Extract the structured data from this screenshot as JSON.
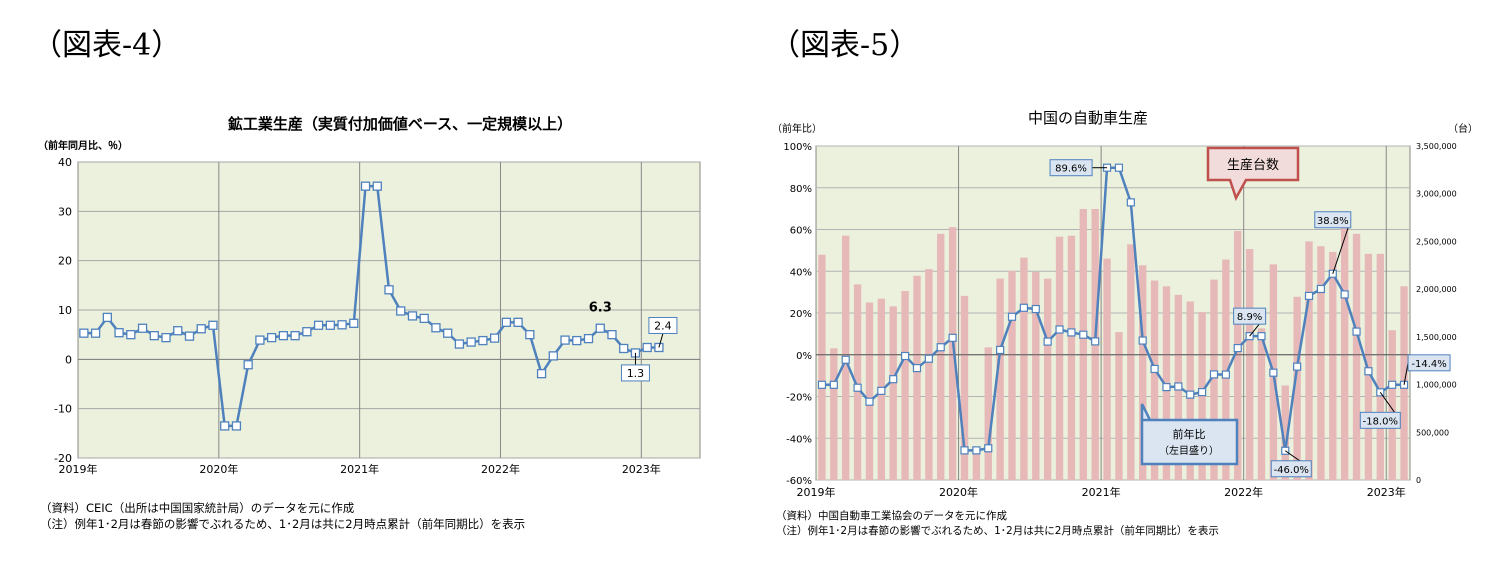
{
  "figure4": {
    "heading": "（図表-4）",
    "notes": [
      "（資料）CEIC（出所は中国国家統計局）のデータを元に作成",
      "（注）例年1･2月は春節の影響でぶれるため、1･2月は共に2月時点累計（前年同期比）を表示"
    ]
  },
  "figure5": {
    "heading": "（図表-5）",
    "notes": [
      "（資料）中国自動車工業協会のデータを元に作成",
      "（注）例年1･2月は春節の影響でぶれるため、1･2月は共に2月時点累計（前年同期比）を表示"
    ]
  },
  "colors": {
    "plot_bg": "#ebf1dd",
    "line": "#4f81bd",
    "bar": "#e6b9b8",
    "marker_fill": "#ffffff",
    "callout_blue_bg": "#dbe5f1",
    "callout_red_bg": "#f2dcdb",
    "callout_red_border": "#c0504d"
  },
  "chart_data": [
    {
      "type": "line",
      "title": "鉱工業生産（実質付加価値ベース、一定規模以上）",
      "ylabel": "（前年同月比、％）",
      "ylim": [
        -20,
        40
      ],
      "yticks": [
        -20,
        -10,
        0,
        10,
        20,
        30,
        40
      ],
      "x_tick_labels": [
        "2019年",
        "2020年",
        "2021年",
        "2022年",
        "2023年"
      ],
      "x_start": "2019-01",
      "grid": true,
      "legend": "none",
      "series": [
        {
          "values": [
            5.3,
            5.3,
            8.5,
            5.4,
            5.0,
            6.3,
            4.8,
            4.4,
            5.8,
            4.7,
            6.2,
            6.9,
            -13.5,
            -13.5,
            -1.1,
            3.9,
            4.4,
            4.8,
            4.8,
            5.6,
            6.9,
            6.9,
            7.0,
            7.3,
            35.1,
            35.1,
            14.1,
            9.8,
            8.8,
            8.3,
            6.4,
            5.3,
            3.1,
            3.5,
            3.8,
            4.3,
            7.5,
            7.5,
            5.0,
            -2.9,
            0.7,
            3.9,
            3.8,
            4.2,
            6.3,
            5.0,
            2.2,
            1.3,
            2.4,
            2.4
          ]
        }
      ],
      "annotations": [
        {
          "label": "6.3",
          "bold": true
        },
        {
          "label": "1.3"
        },
        {
          "label": "2.4"
        }
      ]
    },
    {
      "type": "bar+line",
      "title": "中国の自動車生産",
      "ylabel_left": "（前年比）",
      "ylabel_right": "（台）",
      "ylim_left": [
        -60,
        100
      ],
      "yticks_left": [
        "-60%",
        "-40%",
        "-20%",
        "0%",
        "20%",
        "40%",
        "60%",
        "80%",
        "100%"
      ],
      "ylim_right": [
        0,
        3500000
      ],
      "yticks_right": [
        "0",
        "500,000",
        "1,000,000",
        "1,500,000",
        "2,000,000",
        "2,500,000",
        "3,000,000",
        "3,500,000"
      ],
      "x_tick_labels": [
        "2019年",
        "2020年",
        "2021年",
        "2022年",
        "2023年"
      ],
      "x_start": "2019-01",
      "grid": true,
      "legend": "callouts",
      "series": [
        {
          "name": "生産台数",
          "axis": "right",
          "kind": "bar",
          "values": [
            2360000,
            1380000,
            2560000,
            2050000,
            1860000,
            1900000,
            1820000,
            1980000,
            2140000,
            2210000,
            2580000,
            2650000,
            1930000,
            300000,
            1390000,
            2110000,
            2190000,
            2330000,
            2180000,
            2110000,
            2550000,
            2560000,
            2840000,
            2840000,
            2320000,
            1550000,
            2470000,
            2250000,
            2090000,
            2030000,
            1940000,
            1870000,
            1760000,
            2100000,
            2310000,
            2610000,
            2420000,
            1590000,
            2260000,
            990000,
            1920000,
            2500000,
            2450000,
            2390000,
            2680000,
            2580000,
            2370000,
            2370000,
            1570000,
            2030000
          ]
        },
        {
          "name": "前年比",
          "axis": "left",
          "kind": "line",
          "values": [
            -14.4,
            -14.4,
            -2.4,
            -15.8,
            -22.5,
            -17.3,
            -11.7,
            -0.6,
            -6.4,
            -1.9,
            3.6,
            8.1,
            -45.8,
            -45.8,
            -44.8,
            2.3,
            18.2,
            22.5,
            21.9,
            6.3,
            12.1,
            10.7,
            9.6,
            6.4,
            89.6,
            89.6,
            73.0,
            6.8,
            -6.8,
            -15.5,
            -15.2,
            -19.1,
            -17.9,
            -9.4,
            -9.5,
            3.2,
            8.9,
            8.9,
            -8.6,
            -46.0,
            -5.7,
            28.2,
            31.5,
            38.8,
            28.9,
            11.1,
            -7.9,
            -18.0,
            -14.4,
            -14.4
          ]
        }
      ],
      "annotations": [
        {
          "label": "89.6%"
        },
        {
          "label": "8.9%"
        },
        {
          "label": "38.8%"
        },
        {
          "label": "-46.0%"
        },
        {
          "label": "-18.0%"
        },
        {
          "label": "-14.4%"
        }
      ],
      "callouts": {
        "bar": "生産台数",
        "line_1": "前年比",
        "line_2": "（左目盛り）"
      }
    }
  ]
}
